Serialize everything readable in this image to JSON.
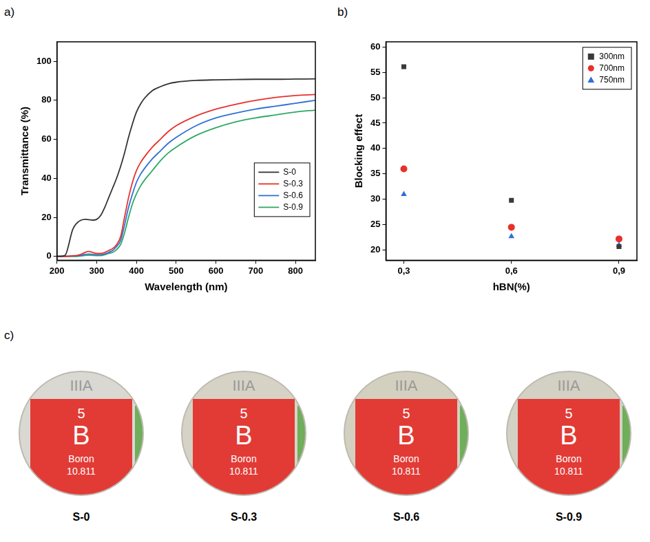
{
  "chart_data": [
    {
      "panel": "a)",
      "type": "line",
      "x_label": "Wavelength (nm)",
      "y_label": "Transmittance (%)",
      "xlim": [
        200,
        850
      ],
      "xticks": [
        200,
        300,
        400,
        500,
        600,
        700,
        800
      ],
      "ylim": [
        -2,
        110
      ],
      "yticks": [
        0,
        20,
        40,
        60,
        80,
        100
      ],
      "grid": false,
      "legend": "lower right",
      "x": [
        200,
        220,
        240,
        250,
        260,
        270,
        280,
        290,
        300,
        310,
        320,
        330,
        340,
        350,
        360,
        370,
        380,
        390,
        400,
        410,
        420,
        440,
        460,
        480,
        500,
        550,
        600,
        650,
        700,
        750,
        800,
        850
      ],
      "series": [
        {
          "name": "S-0",
          "color": "#333333",
          "line_style": "solid",
          "values": [
            0,
            0.5,
            14,
            17,
            18.5,
            19,
            18.8,
            18.6,
            19,
            21,
            25,
            30,
            35,
            40,
            46,
            53,
            61,
            68,
            74,
            78,
            81,
            85,
            87,
            88.5,
            89.3,
            90.2,
            90.5,
            90.7,
            90.8,
            90.8,
            90.9,
            91
          ]
        },
        {
          "name": "S-0.3",
          "color": "#e8302b",
          "line_style": "solid",
          "values": [
            0,
            0,
            0.3,
            0.5,
            1,
            2,
            2.5,
            2,
            1.5,
            1.5,
            2,
            3,
            4,
            6,
            10,
            20,
            30,
            38,
            44,
            48,
            51,
            56,
            60,
            64,
            67,
            72,
            75.5,
            78,
            80,
            81.5,
            82.5,
            83
          ]
        },
        {
          "name": "S-0.6",
          "color": "#2f6fd8",
          "line_style": "solid",
          "values": [
            0,
            0,
            0.2,
            0.3,
            0.5,
            1,
            1.2,
            1,
            0.8,
            0.8,
            1.2,
            2,
            3,
            5,
            8,
            16,
            25,
            32,
            38,
            42,
            45,
            50,
            54,
            58,
            61,
            67,
            71,
            73.5,
            75.5,
            77,
            78.5,
            80
          ]
        },
        {
          "name": "S-0.9",
          "color": "#2ea866",
          "line_style": "solid",
          "values": [
            0,
            0,
            0,
            0,
            0.2,
            0.5,
            0.6,
            0.5,
            0.4,
            0.4,
            0.8,
            1.5,
            2,
            3.5,
            6,
            12,
            20,
            27,
            32,
            36,
            39,
            44,
            49,
            53,
            56,
            62,
            66,
            69,
            71,
            72.5,
            74,
            75
          ]
        }
      ]
    },
    {
      "panel": "b)",
      "type": "scatter",
      "x_label": "hBN(%)",
      "y_label": "Blocking effect",
      "xlim": [
        0.25,
        0.95
      ],
      "xticks": [
        {
          "value": 0.3,
          "label": "0,3"
        },
        {
          "value": 0.6,
          "label": "0,6"
        },
        {
          "value": 0.9,
          "label": "0,9"
        }
      ],
      "ylim": [
        18,
        61
      ],
      "yticks": [
        20,
        25,
        30,
        35,
        40,
        45,
        50,
        55,
        60
      ],
      "grid": false,
      "legend": "upper right",
      "x": [
        0.3,
        0.6,
        0.9
      ],
      "series": [
        {
          "name": "300nm",
          "color": "#3a3a3a",
          "marker": "square",
          "values": [
            56.1,
            29.8,
            20.7
          ]
        },
        {
          "name": "700nm",
          "color": "#e8302b",
          "marker": "circle",
          "values": [
            36.0,
            24.5,
            22.2
          ]
        },
        {
          "name": "750nm",
          "color": "#2f6fd8",
          "marker": "triangle",
          "values": [
            31.0,
            22.7,
            21.0
          ]
        }
      ]
    }
  ],
  "photos": {
    "panel": "c)",
    "items": [
      {
        "caption": "S-0",
        "group": "IIIA",
        "number": "5",
        "symbol": "B",
        "name": "Boron",
        "mass": "10.811"
      },
      {
        "caption": "S-0.3",
        "group": "IIIA",
        "number": "5",
        "symbol": "B",
        "name": "Boron",
        "mass": "10.811"
      },
      {
        "caption": "S-0.6",
        "group": "IIIA",
        "number": "5",
        "symbol": "B",
        "name": "Boron",
        "mass": "10.811"
      },
      {
        "caption": "S-0.9",
        "group": "IIIA",
        "number": "5",
        "symbol": "B",
        "name": "Boron",
        "mass": "10.811"
      }
    ]
  }
}
